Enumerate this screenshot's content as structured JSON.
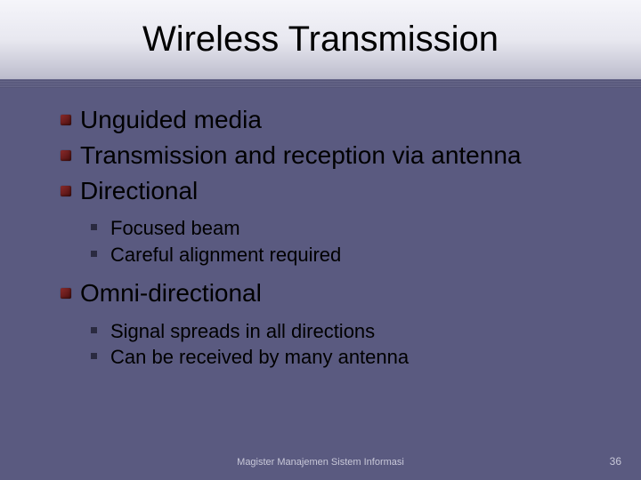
{
  "slide": {
    "title": "Wireless Transmission",
    "footer": "Magister Manajemen Sistem Informasi",
    "page_number": "36",
    "level1": [
      {
        "text": "Unguided media",
        "children": []
      },
      {
        "text": "Transmission and reception via antenna",
        "children": []
      },
      {
        "text": "Directional",
        "children": [
          {
            "text": "Focused beam"
          },
          {
            "text": "Careful alignment required"
          }
        ]
      },
      {
        "text": "Omni-directional",
        "children": [
          {
            "text": "Signal spreads in all directions"
          },
          {
            "text": "Can be received by many antenna"
          }
        ]
      }
    ]
  },
  "style": {
    "background_color": "#5a5a80",
    "title_band_gradient": [
      "#f5f5fa",
      "#e8e8f0",
      "#bcbccc"
    ],
    "title_fontsize_pt": 30,
    "title_color": "#000000",
    "l1_fontsize_pt": 21,
    "l2_fontsize_pt": 17,
    "l1_bullet_color": "#6a1a1a",
    "l2_bullet_color": "#2a2a40",
    "footer_color": "#c8c8d8",
    "footer_fontsize_pt": 8,
    "font_family": "Arial"
  }
}
